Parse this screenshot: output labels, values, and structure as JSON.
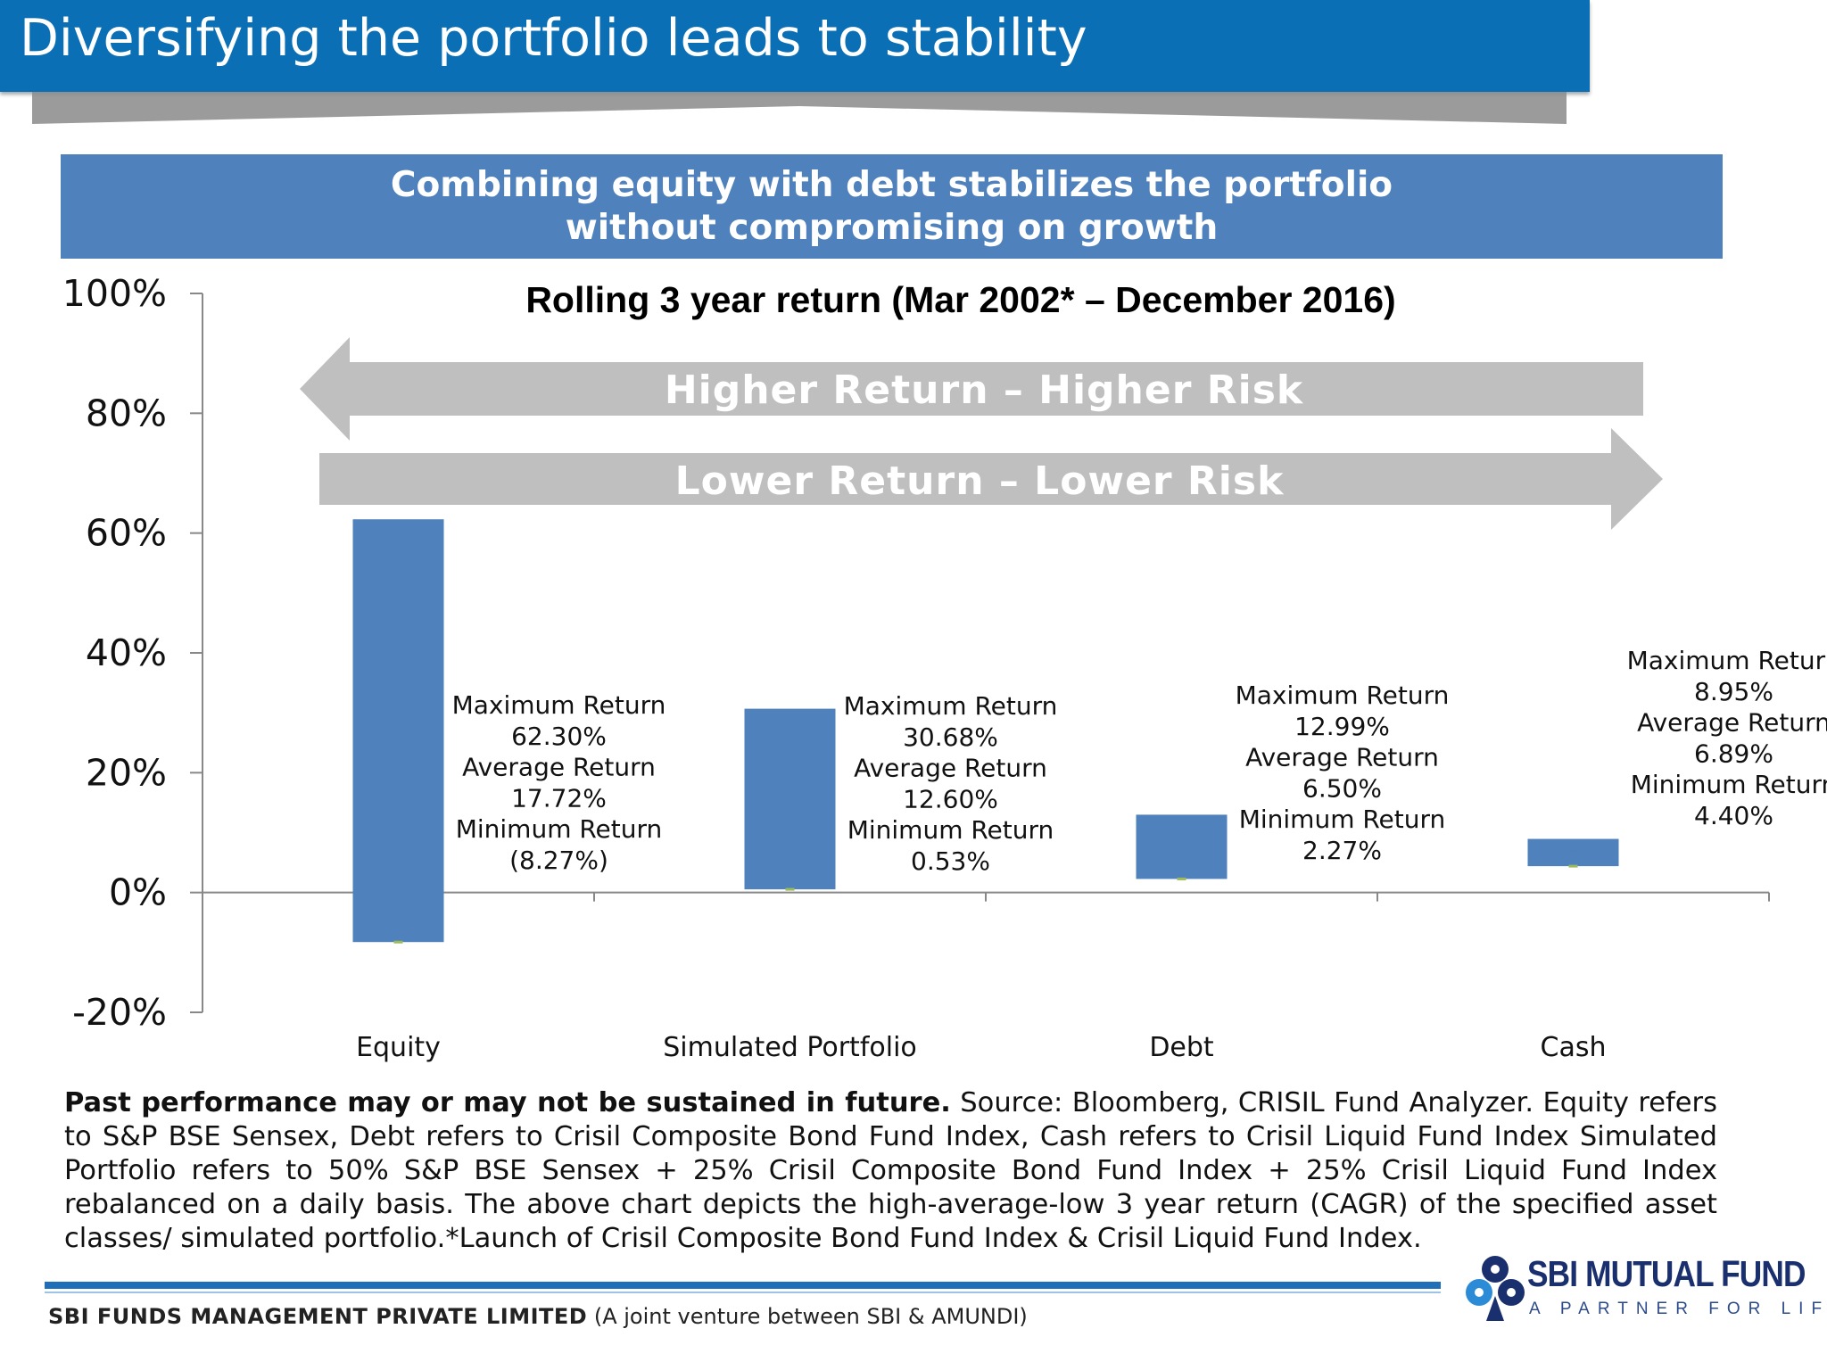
{
  "header": {
    "title": "Diversifying the portfolio leads to stability"
  },
  "subtitle": {
    "line1": "Combining equity with debt stabilizes the portfolio",
    "line2": "without compromising on growth"
  },
  "colors": {
    "bar": "#4f81bd",
    "header": "#0a6fb5",
    "arrow": "#bfbfbf"
  },
  "arrows": {
    "upper": "Higher Return – Higher Risk",
    "lower": "Lower Return – Lower Risk"
  },
  "chart_data": {
    "type": "bar",
    "subtype": "high-low floating bar",
    "title": "Rolling 3 year return (Mar 2002* – December 2016)",
    "categories": [
      "Equity",
      "Simulated Portfolio",
      "Debt",
      "Cash"
    ],
    "series": [
      {
        "name": "Maximum Return",
        "values": [
          62.3,
          30.68,
          12.99,
          8.95
        ]
      },
      {
        "name": "Average Return",
        "values": [
          17.72,
          12.6,
          6.5,
          6.89
        ]
      },
      {
        "name": "Minimum Return",
        "values": [
          -8.27,
          0.53,
          2.27,
          4.4
        ]
      }
    ],
    "ylim": [
      -20,
      100
    ],
    "yticks": [
      -20,
      0,
      20,
      40,
      60,
      80,
      100
    ],
    "ytick_labels": [
      "-20%",
      "0%",
      "20%",
      "40%",
      "60%",
      "80%",
      "100%"
    ],
    "xlabel": "",
    "ylabel": "",
    "annotations": [
      {
        "lines": [
          "Maximum Return",
          "62.30%",
          "Average Return",
          "17.72%",
          "Minimum Return",
          "(8.27%)"
        ]
      },
      {
        "lines": [
          "Maximum Return",
          "30.68%",
          "Average Return",
          "12.60%",
          "Minimum Return",
          "0.53%"
        ]
      },
      {
        "lines": [
          "Maximum Return",
          "12.99%",
          "Average Return",
          "6.50%",
          "Minimum Return",
          "2.27%"
        ]
      },
      {
        "lines": [
          "Maximum Return",
          "8.95%",
          "Average Return",
          "6.89%",
          "Minimum Return",
          "4.40%"
        ]
      }
    ],
    "legend": "none"
  },
  "footnote": {
    "bold": "Past performance may or may not be sustained in future.",
    "text": " Source: Bloomberg, CRISIL Fund Analyzer. Equity refers to S&P BSE Sensex, Debt refers to Crisil Composite Bond Fund Index, Cash refers to Crisil Liquid Fund Index Simulated Portfolio refers to 50% S&P BSE Sensex + 25% Crisil Composite Bond Fund Index + 25% Crisil Liquid Fund Index rebalanced on a daily basis. The above chart depicts the high-average-low 3 year return (CAGR) of the specified asset classes/ simulated portfolio.*Launch of  Crisil Composite Bond Fund Index & Crisil Liquid Fund Index."
  },
  "footer": {
    "company": "SBI FUNDS MANAGEMENT PRIVATE LIMITED",
    "company_note": " (A joint venture between SBI & AMUNDI)",
    "logo_name": "SBI MUTUAL FUND",
    "logo_tagline": "A PARTNER FOR LIFE"
  }
}
